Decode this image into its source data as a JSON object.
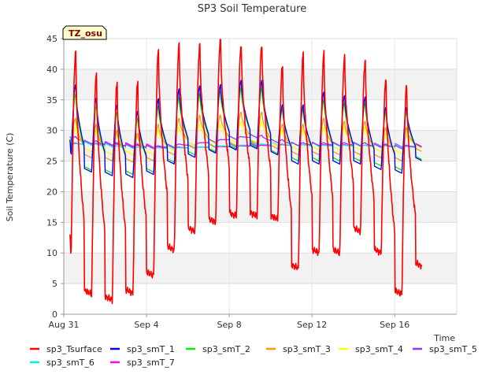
{
  "chart_data": {
    "type": "line",
    "title": "SP3 Soil Temperature",
    "badge": "TZ_osu",
    "xlabel": "Time",
    "ylabel": "Soil Temperature (C)",
    "xlim": [
      0,
      19
    ],
    "ylim": [
      0,
      45
    ],
    "yticks": [
      0,
      5,
      10,
      15,
      20,
      25,
      30,
      35,
      40,
      45
    ],
    "xticks": [
      {
        "day": 0,
        "label": "Aug 31"
      },
      {
        "day": 4,
        "label": "Sep 4"
      },
      {
        "day": 8,
        "label": "Sep 8"
      },
      {
        "day": 12,
        "label": "Sep 12"
      },
      {
        "day": 16,
        "label": "Sep 16"
      }
    ],
    "grid_bands": true,
    "legend_position": "bottom",
    "start_day": 0.3,
    "end_day": 17.3,
    "series": [
      {
        "name": "sp3_Tsurface",
        "color": "#ff0000",
        "daily_max": [
          43,
          39.5,
          38,
          38,
          43,
          44,
          44,
          45,
          44,
          44,
          40.5,
          42.5,
          42.5,
          42,
          41.5,
          38.5,
          37.5
        ],
        "daily_min": [
          8.2,
          3.3,
          2.3,
          3.4,
          6.3,
          10.5,
          13.5,
          15,
          16,
          16,
          15.5,
          7.5,
          10,
          10,
          13.5,
          10,
          3.3,
          7.8
        ],
        "first_value": 13.5
      },
      {
        "name": "sp3_smT_1",
        "color": "#0000ff",
        "daily_max": [
          37.5,
          35.3,
          34.2,
          33.2,
          35.2,
          36.8,
          37.3,
          37.5,
          38.2,
          38.2,
          34.2,
          34.2,
          36.3,
          35.7,
          35.5,
          33.8,
          33.8
        ],
        "daily_min": [
          25.3,
          23.2,
          22.6,
          22.3,
          22.8,
          24.5,
          25.6,
          26.3,
          26.8,
          27.0,
          26.0,
          24.5,
          24.5,
          24.5,
          24.5,
          23.6,
          23.0,
          25.0
        ],
        "first_value": 28.5
      },
      {
        "name": "sp3_smT_2",
        "color": "#00ee00",
        "daily_max": [
          36.0,
          34.0,
          33.0,
          32.0,
          34.0,
          35.5,
          36.0,
          36.5,
          37.0,
          37.0,
          33.5,
          33.5,
          35.0,
          34.5,
          34.5,
          33.0,
          33.0
        ],
        "daily_min": [
          25.5,
          23.5,
          23.0,
          22.8,
          23.2,
          24.8,
          26.0,
          26.5,
          27.0,
          27.2,
          26.2,
          25.0,
          25.0,
          25.0,
          25.0,
          24.2,
          23.5,
          25.2
        ],
        "first_value": 28.3
      },
      {
        "name": "sp3_smT_3",
        "color": "#ff9900",
        "daily_max": [
          32.0,
          31.0,
          30.0,
          29.5,
          31.0,
          32.0,
          32.5,
          32.5,
          33.0,
          33.0,
          31.0,
          31.0,
          32.0,
          31.5,
          31.5,
          30.5,
          30.5
        ],
        "daily_min": [
          27.0,
          25.5,
          25.0,
          24.8,
          25.0,
          26.0,
          27.0,
          27.2,
          27.5,
          27.8,
          27.0,
          26.0,
          26.0,
          26.0,
          26.0,
          25.5,
          25.0,
          26.5
        ],
        "first_value": 28.5
      },
      {
        "name": "sp3_smT_4",
        "color": "#ffff00",
        "daily_max": [
          30.5,
          30.0,
          29.5,
          29.0,
          30.0,
          30.5,
          31.0,
          31.0,
          31.5,
          31.5,
          30.0,
          30.0,
          30.5,
          30.5,
          30.5,
          29.5,
          29.5
        ],
        "daily_min": [
          27.5,
          26.5,
          26.0,
          26.0,
          26.0,
          26.8,
          27.5,
          27.8,
          28.0,
          28.0,
          27.5,
          26.8,
          26.8,
          26.8,
          26.8,
          26.5,
          26.2,
          27.0
        ],
        "first_value": 28.8
      },
      {
        "name": "sp3_smT_5",
        "color": "#9933ff",
        "daily_max": [
          29.0,
          28.3,
          28.0,
          27.8,
          27.5,
          27.8,
          28.0,
          28.5,
          29.0,
          29.2,
          28.5,
          28.0,
          28.0,
          28.0,
          28.0,
          27.8,
          27.6
        ],
        "daily_min": [
          28.5,
          27.8,
          27.5,
          27.2,
          27.0,
          27.2,
          27.5,
          28.0,
          28.5,
          28.8,
          28.0,
          27.5,
          27.5,
          27.5,
          27.5,
          27.2,
          27.0,
          27.2
        ],
        "first_value": 29.0
      },
      {
        "name": "sp3_smT_6",
        "color": "#00eeee",
        "daily_max": [
          28.0,
          27.8,
          27.5,
          27.3,
          27.2,
          27.2,
          27.3,
          27.5,
          27.6,
          27.8,
          27.8,
          27.7,
          27.6,
          27.6,
          27.6,
          27.5,
          27.4
        ],
        "daily_min": [
          27.8,
          27.6,
          27.3,
          27.1,
          27.0,
          27.0,
          27.1,
          27.3,
          27.4,
          27.6,
          27.6,
          27.5,
          27.4,
          27.4,
          27.4,
          27.3,
          27.2,
          27.2
        ],
        "first_value": 27.8
      },
      {
        "name": "sp3_smT_7",
        "color": "#ff00ff",
        "daily_max": [
          27.9,
          27.9,
          27.8,
          27.6,
          27.4,
          27.3,
          27.3,
          27.4,
          27.5,
          27.6,
          27.7,
          27.7,
          27.7,
          27.7,
          27.6,
          27.6,
          27.5
        ],
        "daily_min": [
          27.7,
          27.7,
          27.6,
          27.4,
          27.2,
          27.1,
          27.1,
          27.2,
          27.3,
          27.4,
          27.5,
          27.5,
          27.5,
          27.5,
          27.4,
          27.4,
          27.3,
          27.3
        ],
        "first_value": 27.7
      }
    ]
  }
}
